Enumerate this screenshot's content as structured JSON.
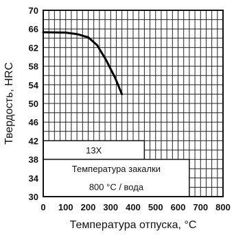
{
  "chart_data": {
    "type": "line",
    "x_axis_label": "Температура отпуска, °С",
    "y_axis_label": "Твердость, HRC",
    "xlim": [
      0,
      800
    ],
    "ylim": [
      30,
      70
    ],
    "x_ticks": [
      "0",
      "100",
      "200",
      "300",
      "400",
      "500",
      "600",
      "700",
      "800"
    ],
    "y_ticks": [
      "30",
      "34",
      "38",
      "42",
      "46",
      "50",
      "54",
      "58",
      "62",
      "66",
      "70"
    ],
    "grid": true,
    "series": [
      {
        "x": [
          0,
          100,
          150,
          200,
          240,
          280,
          320,
          350
        ],
        "y": [
          65.3,
          65.2,
          64.9,
          64.2,
          62.5,
          59.3,
          55.5,
          52.0
        ]
      }
    ],
    "annotations": {
      "grade": "13Х",
      "quench_line1": "Температура закалки",
      "quench_line2": "800 °С / вода"
    }
  }
}
